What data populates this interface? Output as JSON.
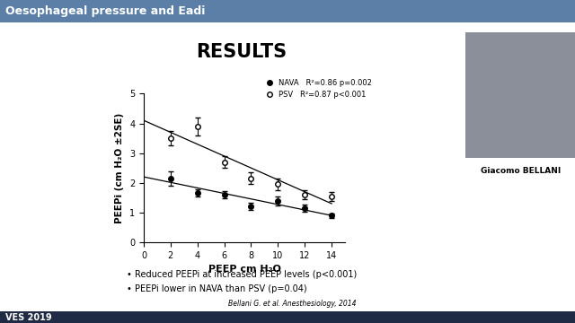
{
  "slide": {
    "header": "Oesophageal pressure and Eadi",
    "speaker": "Giacomo BELLANI",
    "footer": "VES 2019"
  },
  "chart_data": {
    "type": "scatter",
    "title": "RESULTS",
    "x_label": "PEEP cm H₂O",
    "y_label": "PEEPi (cm H₂O ±2SE)",
    "x": [
      2,
      4,
      6,
      8,
      10,
      12,
      14
    ],
    "series": [
      {
        "name": "NAVA",
        "fit_label": "R²=0.86 p=0.002",
        "color": "#000000",
        "marker": "circle",
        "values": [
          2.15,
          1.65,
          1.6,
          1.2,
          1.4,
          1.15,
          0.9
        ],
        "error": [
          0.25,
          0.12,
          0.12,
          0.12,
          0.15,
          0.12,
          0.08
        ],
        "fit_x": [
          0,
          14
        ],
        "fit_values": [
          2.2,
          0.9
        ]
      },
      {
        "name": "PSV",
        "fit_label": "R²=0.87 p<0.001",
        "color": "#ffffff",
        "marker": "circle",
        "values": [
          3.5,
          3.9,
          2.7,
          2.15,
          1.95,
          1.6,
          1.55
        ],
        "error": [
          0.25,
          0.3,
          0.2,
          0.2,
          0.2,
          0.15,
          0.15
        ],
        "fit_x": [
          0,
          14
        ],
        "fit_values": [
          4.1,
          1.3
        ]
      }
    ],
    "xlim": [
      0,
      15
    ],
    "xticks": [
      0,
      2,
      4,
      6,
      8,
      10,
      12,
      14
    ],
    "ylim": [
      0,
      5
    ],
    "yticks": [
      0,
      1,
      2,
      3,
      4,
      5
    ],
    "legend": "upper right",
    "grid": false,
    "annotations": [
      "• Reduced PEEPi at increased PEEP levels (p<0.001)",
      "• PEEPi lower in NAVA than PSV (p=0.04)"
    ],
    "source": "Bellani G. et al. Anesthesiology, 2014"
  }
}
